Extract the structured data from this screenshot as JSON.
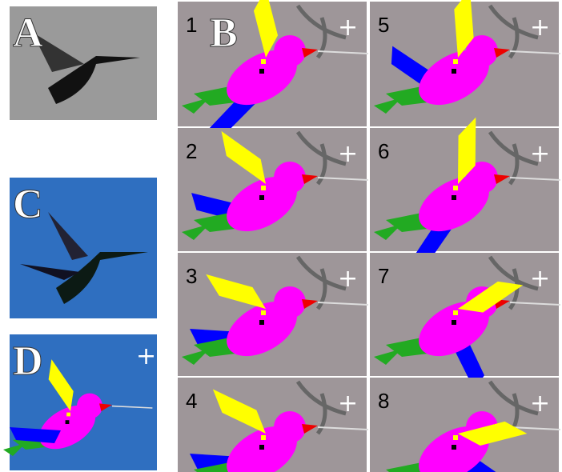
{
  "panels": {
    "A": "A",
    "B": "B",
    "C": "C",
    "D": "D",
    "frames": [
      "1",
      "2",
      "3",
      "4",
      "5",
      "6",
      "7",
      "8"
    ]
  }
}
